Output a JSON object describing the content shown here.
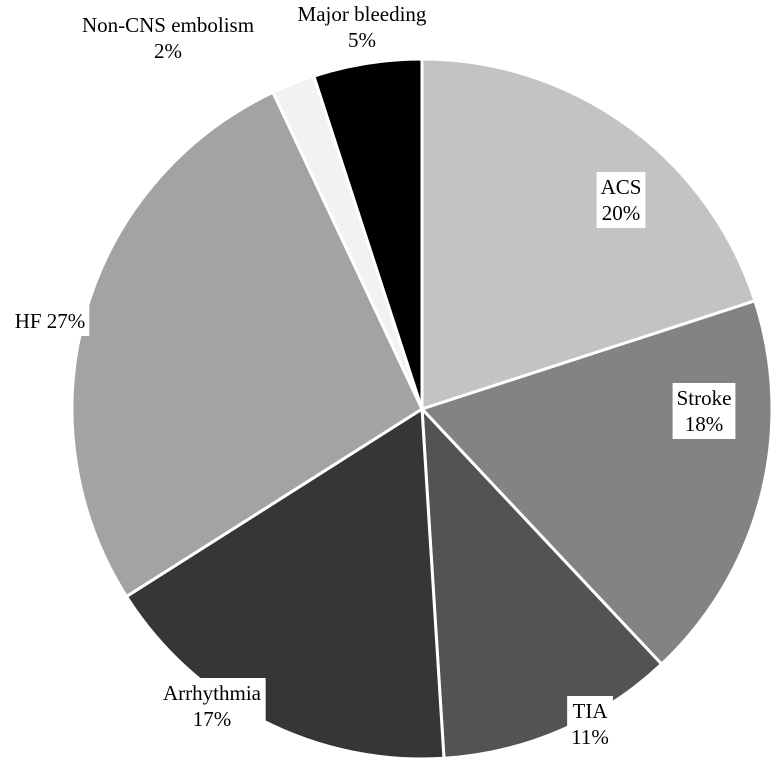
{
  "chart_data": {
    "type": "pie",
    "title": "",
    "start_angle_deg": 0,
    "direction": "clockwise",
    "slices": [
      {
        "name": "ACS",
        "value": 20,
        "label_lines": [
          "ACS",
          "20%"
        ],
        "color": "#c3c3c3",
        "label_boxed": true
      },
      {
        "name": "Stroke",
        "value": 18,
        "label_lines": [
          "Stroke",
          "18%"
        ],
        "color": "#838383",
        "label_boxed": true
      },
      {
        "name": "TIA",
        "value": 11,
        "label_lines": [
          "TIA",
          "11%"
        ],
        "color": "#535353",
        "label_boxed": true
      },
      {
        "name": "Arrhythmia",
        "value": 17,
        "label_lines": [
          "Arrhythmia",
          "17%"
        ],
        "color": "#363636",
        "label_boxed": true
      },
      {
        "name": "HF",
        "value": 27,
        "label_lines": [
          "HF 27%"
        ],
        "color": "#a3a3a3",
        "label_boxed": true
      },
      {
        "name": "Non-CNS embolism",
        "value": 2,
        "label_lines": [
          "Non-CNS embolism",
          "2%"
        ],
        "color": "#f2f2f2",
        "label_boxed": false
      },
      {
        "name": "Major bleeding",
        "value": 5,
        "label_lines": [
          "Major bleeding",
          "5%"
        ],
        "color": "#000000",
        "label_boxed": false
      }
    ]
  }
}
